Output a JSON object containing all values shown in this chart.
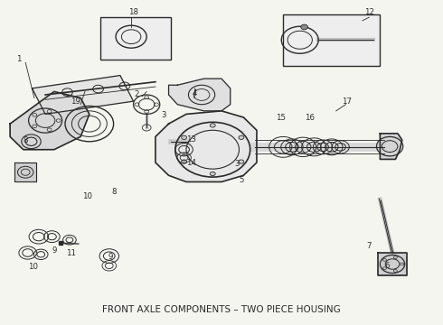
{
  "title": "FRONT AXLE COMPONENTS – TWO PIECE HOUSING",
  "title_fontsize": 7.5,
  "bg_color": "#f5f5f0",
  "line_color": "#2a2a2a",
  "fig_width": 4.9,
  "fig_height": 3.6,
  "dpi": 100
}
